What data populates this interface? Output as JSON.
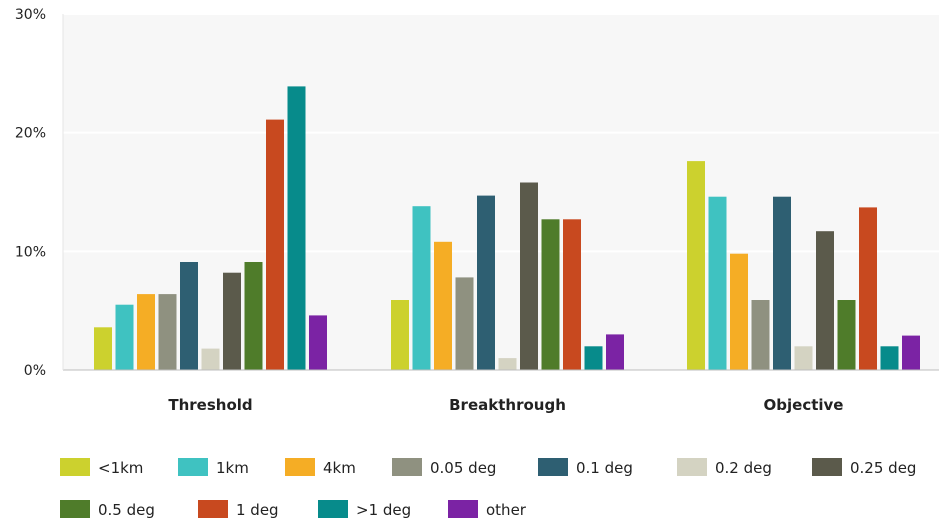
{
  "chart_data": {
    "type": "bar",
    "categories": [
      "Threshold",
      "Breakthrough",
      "Objective"
    ],
    "ylim": [
      0,
      30
    ],
    "yticks": [
      {
        "value": 0,
        "label": "0%"
      },
      {
        "value": 10,
        "label": "10%"
      },
      {
        "value": 20,
        "label": "20%"
      },
      {
        "value": 30,
        "label": "30%"
      }
    ],
    "grid": true,
    "legend_position": "bottom",
    "series": [
      {
        "name": "<1km",
        "color": "#ccd12e",
        "values": [
          3.6,
          5.9,
          17.6
        ]
      },
      {
        "name": "1km",
        "color": "#3fc2c1",
        "values": [
          5.5,
          13.8,
          14.6
        ]
      },
      {
        "name": "4km",
        "color": "#f5ad25",
        "values": [
          6.4,
          10.8,
          9.8
        ]
      },
      {
        "name": "0.05 deg",
        "color": "#8f9180",
        "values": [
          6.4,
          7.8,
          5.9
        ]
      },
      {
        "name": "0.1 deg",
        "color": "#2e5f72",
        "values": [
          9.1,
          14.7,
          14.6
        ]
      },
      {
        "name": "0.2 deg",
        "color": "#d4d3c2",
        "values": [
          1.8,
          1.0,
          2.0
        ]
      },
      {
        "name": "0.25 deg",
        "color": "#5b5a4b",
        "values": [
          8.2,
          15.8,
          11.7
        ]
      },
      {
        "name": "0.5 deg",
        "color": "#4f7c2a",
        "values": [
          9.1,
          12.7,
          5.9
        ]
      },
      {
        "name": "1 deg",
        "color": "#c8491f",
        "values": [
          21.1,
          12.7,
          13.7
        ]
      },
      {
        "name": ">1 deg",
        "color": "#078b8b",
        "values": [
          23.9,
          2.0,
          2.0
        ]
      },
      {
        "name": "other",
        "color": "#7b23a4",
        "values": [
          4.6,
          3.0,
          2.9
        ]
      }
    ]
  }
}
